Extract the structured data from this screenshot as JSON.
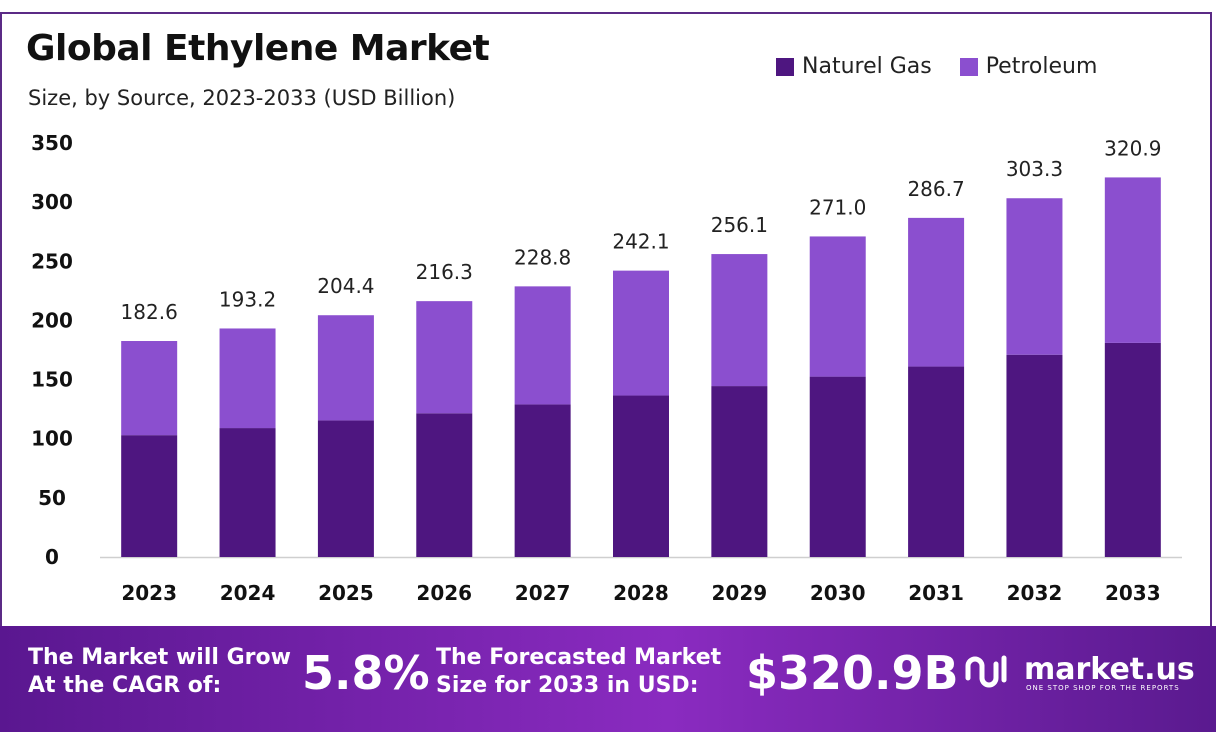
{
  "header": {
    "title": "Global Ethylene Market",
    "subtitle": "Size, by Source, 2023-2033 (USD Billion)"
  },
  "legend": {
    "items": [
      {
        "label": "Naturel Gas",
        "color": "#4e1680"
      },
      {
        "label": "Petroleum",
        "color": "#8b4fcf"
      }
    ]
  },
  "chart_data": {
    "type": "bar",
    "stacked": true,
    "categories": [
      "2023",
      "2024",
      "2025",
      "2026",
      "2027",
      "2028",
      "2029",
      "2030",
      "2031",
      "2032",
      "2033"
    ],
    "series": [
      {
        "name": "Naturel Gas",
        "color": "#4e1680",
        "values": [
          103.0,
          109.0,
          115.5,
          121.5,
          129.0,
          136.5,
          144.5,
          152.5,
          161.0,
          171.0,
          181.0
        ]
      },
      {
        "name": "Petroleum",
        "color": "#8b4fcf",
        "values": [
          79.6,
          84.2,
          88.9,
          94.8,
          99.8,
          105.6,
          111.6,
          118.5,
          125.7,
          132.3,
          139.9
        ]
      }
    ],
    "totals": [
      "182.6",
      "193.2",
      "204.4",
      "216.3",
      "228.8",
      "242.1",
      "256.1",
      "271.0",
      "286.7",
      "303.3",
      "320.9"
    ],
    "y_ticks": [
      "0",
      "50",
      "100",
      "150",
      "200",
      "250",
      "300",
      "350"
    ],
    "ylim": [
      0,
      350
    ],
    "grid": false
  },
  "banner": {
    "cagr_label_line1": "The Market will Grow",
    "cagr_label_line2": "At the CAGR of:",
    "cagr_value": "5.8%",
    "forecast_label_line1": "The Forecasted Market",
    "forecast_label_line2": "Size for 2033 in USD:",
    "forecast_value": "$320.9B",
    "logo_name": "market.us",
    "logo_tagline": "ONE STOP SHOP FOR THE REPORTS"
  }
}
